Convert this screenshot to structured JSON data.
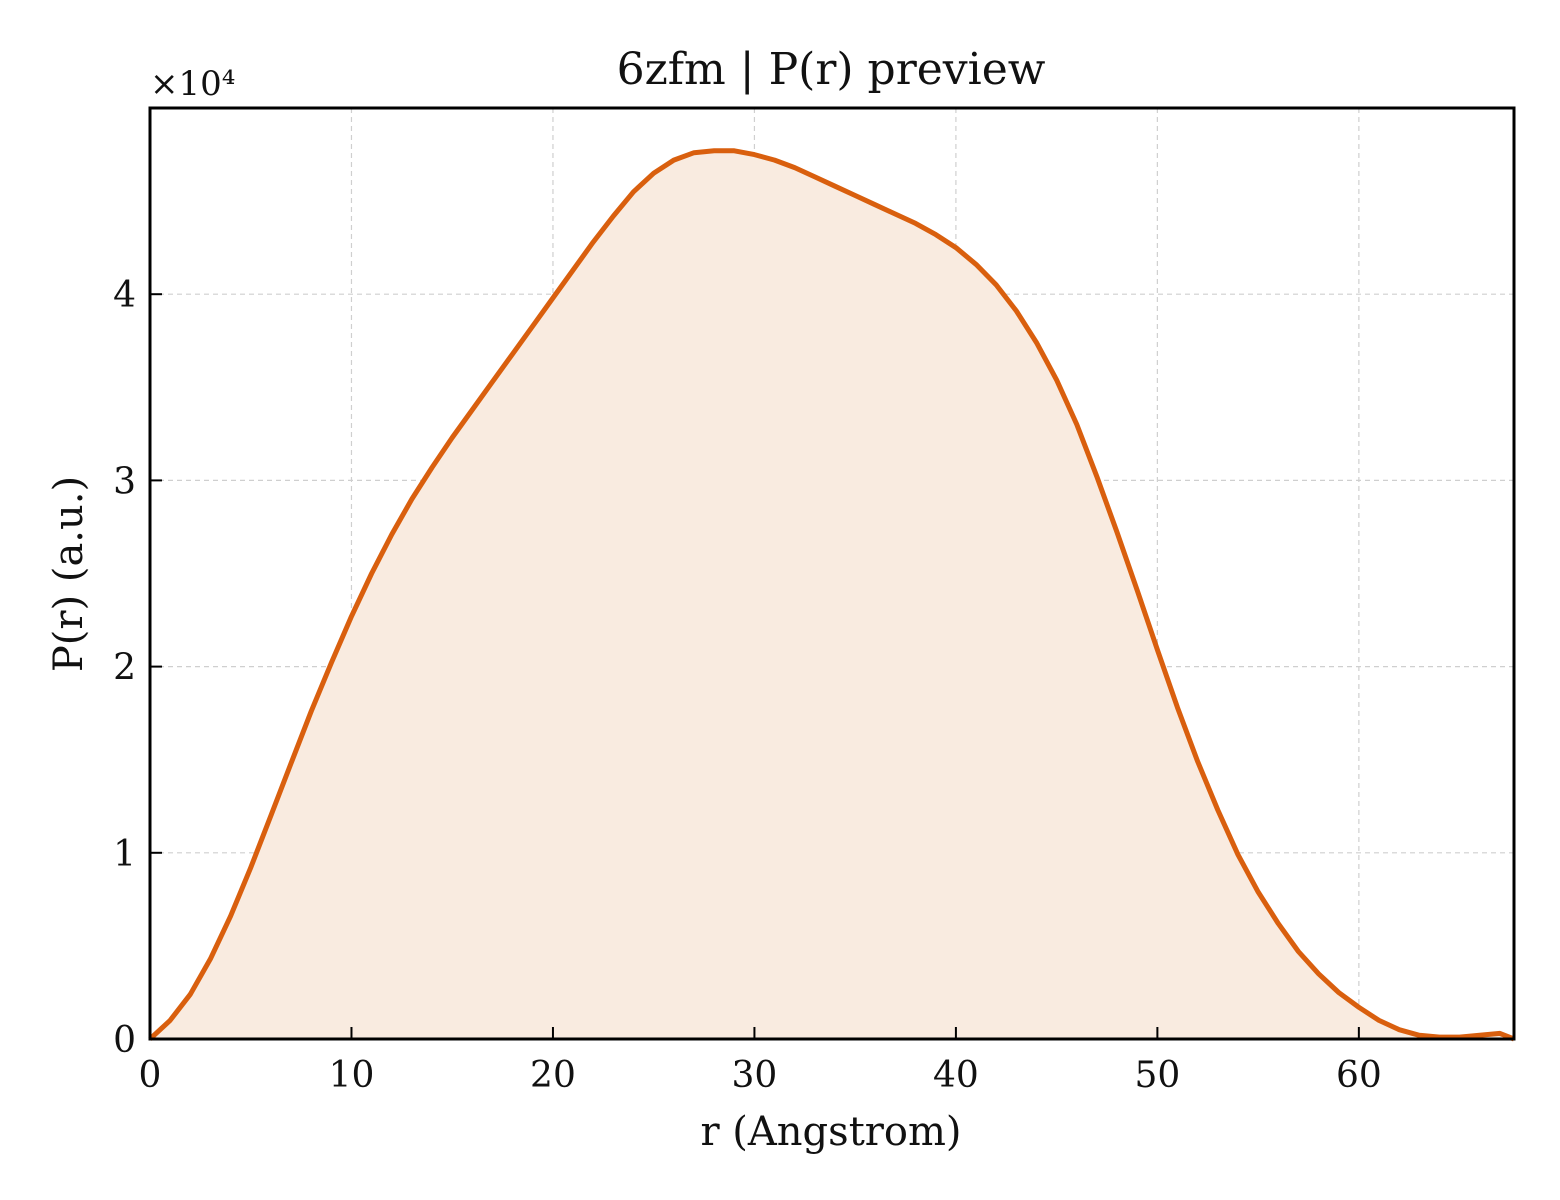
{
  "chart_data": {
    "type": "area",
    "title": "6zfm | P(r) preview",
    "xlabel": "r (Angstrom)",
    "ylabel": "P(r) (a.u.)",
    "y_multiplier": "×10⁴",
    "xlim": [
      0,
      67.7
    ],
    "ylim": [
      0,
      5.0
    ],
    "x_ticks": [
      0,
      10,
      20,
      30,
      40,
      50,
      60
    ],
    "y_ticks": [
      0,
      1,
      2,
      3,
      4
    ],
    "x_tick_labels": [
      "0",
      "10",
      "20",
      "30",
      "40",
      "50",
      "60"
    ],
    "y_tick_labels": [
      "0",
      "1",
      "2",
      "3",
      "4"
    ],
    "grid": true,
    "legend": "none",
    "line_color": "#d95f0e",
    "fill_color": "#f9ebe0",
    "series": [
      {
        "x": [
          0,
          1,
          2,
          3,
          4,
          5,
          6,
          7,
          8,
          9,
          10,
          11,
          12,
          13,
          14,
          15,
          16,
          17,
          18,
          19,
          20,
          21,
          22,
          23,
          24,
          25,
          26,
          27,
          28,
          29,
          30,
          31,
          32,
          33,
          34,
          35,
          36,
          37,
          38,
          39,
          40,
          41,
          42,
          43,
          44,
          45,
          46,
          47,
          48,
          49,
          50,
          51,
          52,
          53,
          54,
          55,
          56,
          57,
          58,
          59,
          60,
          61,
          62,
          63,
          64,
          65,
          66,
          67,
          67.7
        ],
        "y": [
          0.0,
          0.1,
          0.24,
          0.43,
          0.66,
          0.92,
          1.2,
          1.48,
          1.76,
          2.02,
          2.27,
          2.5,
          2.71,
          2.9,
          3.07,
          3.23,
          3.38,
          3.53,
          3.68,
          3.83,
          3.98,
          4.13,
          4.28,
          4.42,
          4.55,
          4.65,
          4.72,
          4.76,
          4.77,
          4.77,
          4.75,
          4.72,
          4.68,
          4.63,
          4.58,
          4.53,
          4.48,
          4.43,
          4.38,
          4.32,
          4.25,
          4.16,
          4.05,
          3.91,
          3.74,
          3.54,
          3.3,
          3.02,
          2.72,
          2.41,
          2.09,
          1.78,
          1.49,
          1.23,
          0.99,
          0.79,
          0.62,
          0.47,
          0.35,
          0.25,
          0.17,
          0.1,
          0.05,
          0.02,
          0.01,
          0.01,
          0.02,
          0.03,
          0.0
        ]
      }
    ]
  }
}
